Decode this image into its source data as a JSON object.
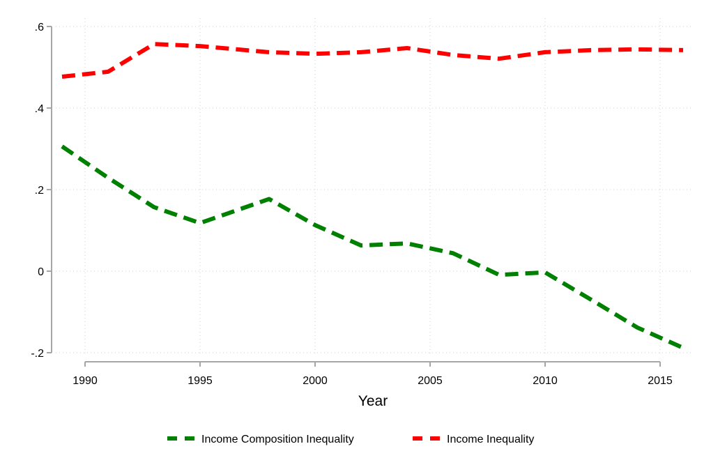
{
  "chart_data": {
    "type": "line",
    "title": "",
    "xlabel": "Year",
    "ylabel": "",
    "xlim": [
      1988.5,
      2016.4
    ],
    "ylim": [
      -0.2,
      0.6
    ],
    "grid": true,
    "legend_position": "bottom",
    "x_ticks": [
      {
        "value": 1990,
        "label": "1990"
      },
      {
        "value": 1995,
        "label": "1995"
      },
      {
        "value": 2000,
        "label": "2000"
      },
      {
        "value": 2005,
        "label": "2005"
      },
      {
        "value": 2010,
        "label": "2010"
      },
      {
        "value": 2015,
        "label": "2015"
      }
    ],
    "y_ticks": [
      {
        "value": 0.6,
        "label": ".6"
      },
      {
        "value": 0.4,
        "label": ".4"
      },
      {
        "value": 0.2,
        "label": ".2"
      },
      {
        "value": 0,
        "label": "0"
      },
      {
        "value": -0.2,
        "label": "-.2"
      }
    ],
    "series": [
      {
        "name": "Income Composition Inequality",
        "color": "#008000",
        "style": "dashed",
        "x": [
          1989,
          1991,
          1993,
          1995,
          1998,
          2000,
          2002,
          2004,
          2006,
          2008,
          2010,
          2012,
          2014,
          2016
        ],
        "values": [
          0.306,
          0.229,
          0.157,
          0.118,
          0.177,
          0.113,
          0.063,
          0.068,
          0.044,
          -0.009,
          -0.003,
          -0.07,
          -0.138,
          -0.188
        ]
      },
      {
        "name": "Income Inequality",
        "color": "#ff0000",
        "style": "dashed",
        "x": [
          1989,
          1991,
          1993,
          1995,
          1998,
          2000,
          2002,
          2004,
          2006,
          2008,
          2010,
          2012,
          2014,
          2016
        ],
        "values": [
          0.477,
          0.489,
          0.557,
          0.552,
          0.537,
          0.533,
          0.537,
          0.547,
          0.53,
          0.521,
          0.537,
          0.542,
          0.544,
          0.542
        ]
      }
    ]
  }
}
